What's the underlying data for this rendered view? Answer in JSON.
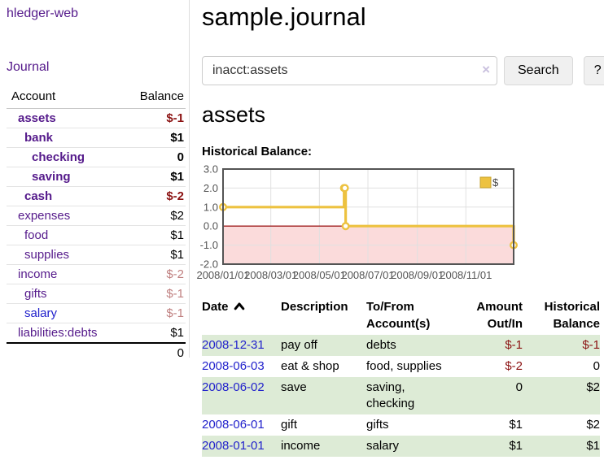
{
  "theme": {
    "link_purple": "#551a8b",
    "link_blue": "#2222cc",
    "negative": "#8b1212",
    "negative_muted": "#c08080",
    "row_green": "#ddebd6",
    "chart_gold": "#edc240"
  },
  "sidebar": {
    "app_title": "hledger-web",
    "journal_link": "Journal",
    "accounts_table": {
      "headers": [
        "Account",
        "Balance"
      ],
      "rows": [
        {
          "account": "assets",
          "balance": "$-1",
          "indent": 0,
          "bold": true,
          "balance_color": "negative"
        },
        {
          "account": "bank",
          "balance": "$1",
          "indent": 1,
          "bold": true,
          "balance_color": "normal"
        },
        {
          "account": "checking",
          "balance": "0",
          "indent": 2,
          "bold": true,
          "balance_color": "normal"
        },
        {
          "account": "saving",
          "balance": "$1",
          "indent": 2,
          "bold": true,
          "balance_color": "normal"
        },
        {
          "account": "cash",
          "balance": "$-2",
          "indent": 1,
          "bold": true,
          "balance_color": "negative"
        },
        {
          "account": "expenses",
          "balance": "$2",
          "indent": 0,
          "bold": false,
          "balance_color": "normal"
        },
        {
          "account": "food",
          "balance": "$1",
          "indent": 1,
          "bold": false,
          "balance_color": "normal"
        },
        {
          "account": "supplies",
          "balance": "$1",
          "indent": 1,
          "bold": false,
          "balance_color": "normal"
        },
        {
          "account": "income",
          "balance": "$-2",
          "indent": 0,
          "bold": false,
          "balance_color": "negative-muted"
        },
        {
          "account": "gifts",
          "balance": "$-1",
          "indent": 1,
          "bold": false,
          "balance_color": "negative-muted"
        },
        {
          "account": "salary",
          "balance": "$-1",
          "indent": 1,
          "bold": false,
          "balance_color": "negative-muted",
          "link_color": "blue"
        },
        {
          "account": "liabilities:debts",
          "balance": "$1",
          "indent": 0,
          "bold": false,
          "balance_color": "normal"
        }
      ],
      "total": "0"
    }
  },
  "header": {
    "title": "sample.journal",
    "search": {
      "value": "inacct:assets",
      "clear_icon": "×",
      "button_label": "Search",
      "help_label": "?"
    }
  },
  "main": {
    "account_heading": "assets",
    "chart_label": "Historical Balance:"
  },
  "chart_data": {
    "type": "line",
    "title": "Historical Balance",
    "step": true,
    "series": [
      {
        "name": "$",
        "color": "#edc240",
        "points": [
          {
            "date": "2008-01-01",
            "day": 0,
            "value": 1
          },
          {
            "date": "2008-06-01",
            "day": 152,
            "value": 2
          },
          {
            "date": "2008-06-02",
            "day": 153,
            "value": 2
          },
          {
            "date": "2008-06-03",
            "day": 154,
            "value": 0
          },
          {
            "date": "2008-12-31",
            "day": 365,
            "value": -1
          }
        ]
      }
    ],
    "x_ticks": [
      {
        "label": "2008/01/01",
        "day": 0
      },
      {
        "label": "2008/03/01",
        "day": 60
      },
      {
        "label": "2008/05/01",
        "day": 121
      },
      {
        "label": "2008/07/01",
        "day": 182
      },
      {
        "label": "2008/09/01",
        "day": 244
      },
      {
        "label": "2008/11/01",
        "day": 305
      }
    ],
    "x_range_days": [
      0,
      365
    ],
    "y_ticks": [
      3.0,
      2.0,
      1.0,
      0.0,
      -1.0,
      -2.0
    ],
    "ylim": [
      -2,
      3
    ],
    "grid": true,
    "negative_region": {
      "from": 0,
      "to": -2,
      "fill": "#fbdbdb",
      "zero_line_color": "#a02020"
    },
    "legend": {
      "position": "top-right",
      "label": "$"
    },
    "colors": {
      "border": "#545454",
      "gridline": "#e0e0e0",
      "tick_text": "#545454"
    }
  },
  "register_table": {
    "headers": [
      {
        "label": "Date",
        "sort": "asc"
      },
      {
        "label": "Description"
      },
      {
        "label": "To/From Account(s)"
      },
      {
        "label": "Amount Out/In",
        "align": "right"
      },
      {
        "label": "Historical Balance",
        "align": "right"
      }
    ],
    "rows": [
      {
        "date": "2008-12-31",
        "description": "pay off",
        "accounts": "debts",
        "amount": "$-1",
        "amount_negative": true,
        "balance": "$-1",
        "balance_negative": true,
        "green": true
      },
      {
        "date": "2008-06-03",
        "description": "eat & shop",
        "accounts": "food, supplies",
        "amount": "$-2",
        "amount_negative": true,
        "balance": "0",
        "balance_negative": false,
        "green": false
      },
      {
        "date": "2008-06-02",
        "description": "save",
        "accounts": "saving, checking",
        "amount": "0",
        "amount_negative": false,
        "balance": "$2",
        "balance_negative": false,
        "green": true
      },
      {
        "date": "2008-06-01",
        "description": "gift",
        "accounts": "gifts",
        "amount": "$1",
        "amount_negative": false,
        "balance": "$2",
        "balance_negative": false,
        "green": false
      },
      {
        "date": "2008-01-01",
        "description": "income",
        "accounts": "salary",
        "amount": "$1",
        "amount_negative": false,
        "balance": "$1",
        "balance_negative": false,
        "green": true
      }
    ]
  }
}
